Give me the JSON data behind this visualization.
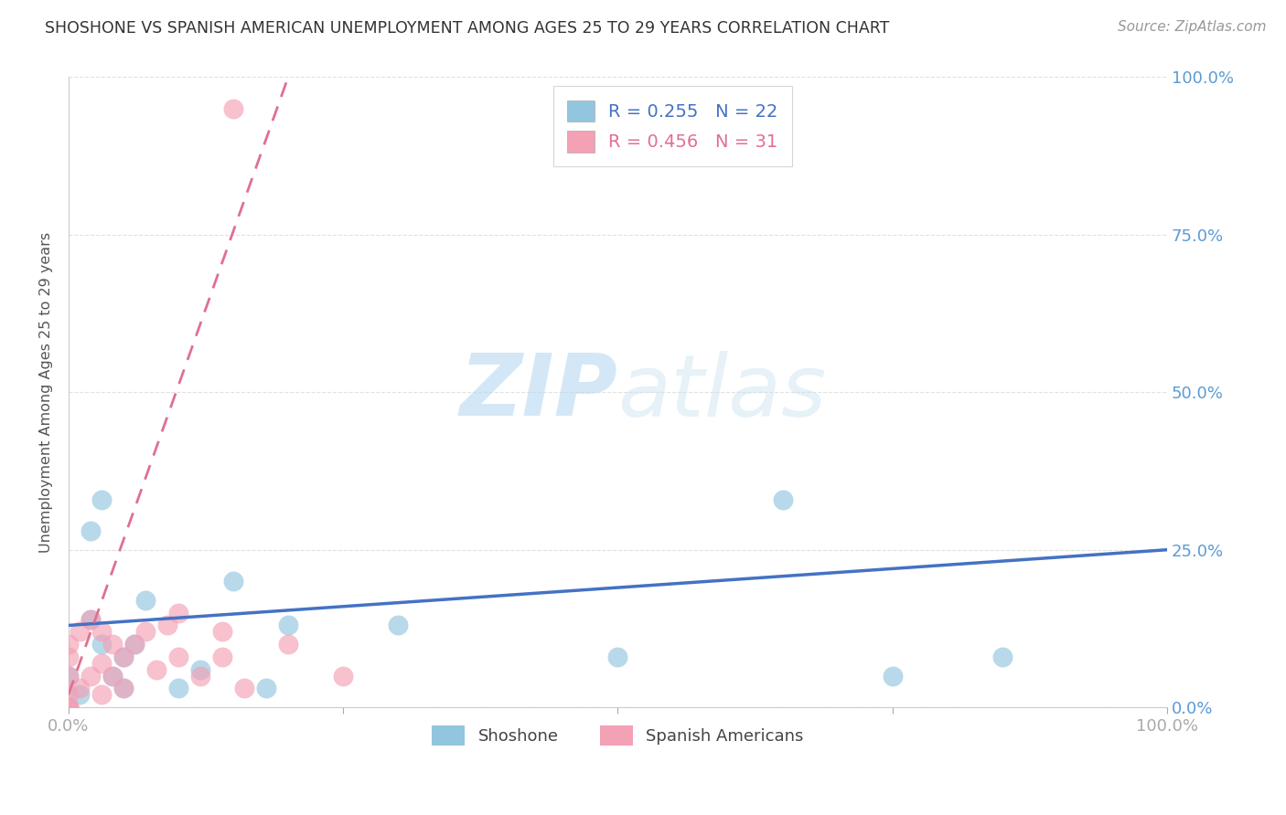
{
  "title": "SHOSHONE VS SPANISH AMERICAN UNEMPLOYMENT AMONG AGES 25 TO 29 YEARS CORRELATION CHART",
  "source": "Source: ZipAtlas.com",
  "ylabel": "Unemployment Among Ages 25 to 29 years",
  "shoshone_color": "#92C5DE",
  "spanish_color": "#F4A0B5",
  "shoshone_line_color": "#4472C4",
  "spanish_line_color": "#E07090",
  "title_color": "#333333",
  "tick_color": "#5B9BD5",
  "source_color": "#999999",
  "bg_color": "#FFFFFF",
  "shoshone_R": 0.255,
  "shoshone_N": 22,
  "spanish_R": 0.456,
  "spanish_N": 31,
  "shoshone_label": "Shoshone",
  "spanish_label": "Spanish Americans",
  "shoshone_x": [
    0,
    0,
    1,
    2,
    3,
    4,
    5,
    5,
    7,
    10,
    12,
    15,
    18,
    20,
    50,
    65,
    75,
    85,
    3,
    2,
    6,
    30
  ],
  "shoshone_y": [
    0,
    5,
    2,
    28,
    33,
    5,
    3,
    8,
    17,
    3,
    6,
    20,
    3,
    13,
    8,
    33,
    5,
    8,
    10,
    14,
    10,
    13
  ],
  "spanish_x": [
    0,
    0,
    0,
    0,
    0,
    0,
    0,
    1,
    1,
    2,
    2,
    3,
    3,
    3,
    4,
    4,
    5,
    5,
    6,
    7,
    8,
    9,
    10,
    10,
    12,
    14,
    14,
    15,
    16,
    20,
    25
  ],
  "spanish_y": [
    0,
    0,
    0,
    2,
    5,
    8,
    10,
    3,
    12,
    5,
    14,
    2,
    7,
    12,
    5,
    10,
    3,
    8,
    10,
    12,
    6,
    13,
    8,
    15,
    5,
    12,
    8,
    95,
    3,
    10,
    5
  ],
  "shoshone_trend_x0": 0,
  "shoshone_trend_y0": 13,
  "shoshone_trend_x1": 100,
  "shoshone_trend_y1": 25,
  "spanish_trend_x0": 0,
  "spanish_trend_y0": 2,
  "spanish_trend_x1": 20,
  "spanish_trend_y1": 100,
  "yticks": [
    0,
    25,
    50,
    75,
    100
  ],
  "xticks": [
    0,
    25,
    50,
    75,
    100
  ],
  "xlim": [
    0,
    100
  ],
  "ylim": [
    0,
    100
  ],
  "grid_color": "#CCCCCC",
  "watermark1": "ZIP",
  "watermark2": "atlas"
}
